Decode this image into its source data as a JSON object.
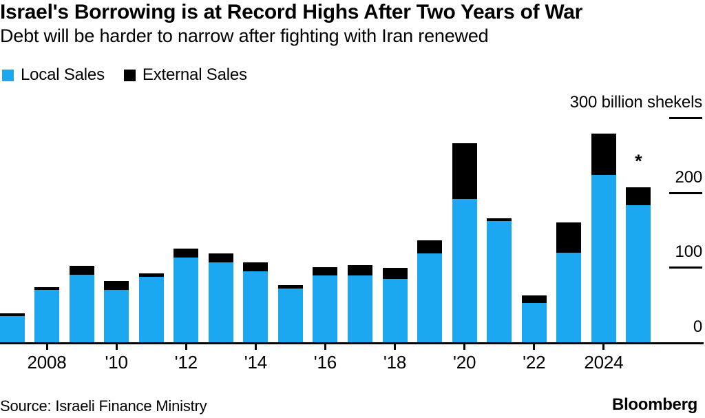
{
  "header": {
    "title": "Israel's Borrowing is at Record Highs After Two Years of War",
    "subtitle": "Debt will be harder to narrow after fighting with Iran renewed"
  },
  "legend": {
    "items": [
      {
        "label": "Local Sales",
        "color": "#1CA8F0"
      },
      {
        "label": "External Sales",
        "color": "#000000"
      }
    ]
  },
  "chart_data": {
    "type": "bar",
    "stacked": true,
    "title": "Israel's Borrowing is at Record Highs After Two Years of War",
    "subtitle": "Debt will be harder to narrow after fighting with Iran renewed",
    "unit": "billion shekels",
    "categories": [
      "2007",
      "2008",
      "2009",
      "2010",
      "2011",
      "2012",
      "2013",
      "2014",
      "2015",
      "2016",
      "2017",
      "2018",
      "2019",
      "2020",
      "2021",
      "2022",
      "2023",
      "2024",
      "2025"
    ],
    "series": [
      {
        "name": "Local Sales",
        "color": "#1CA8F0",
        "values": [
          35,
          70,
          90,
          70,
          87,
          113,
          107,
          95,
          72,
          89,
          89,
          85,
          119,
          191,
          162,
          52,
          120,
          224,
          183
        ]
      },
      {
        "name": "External Sales",
        "color": "#000000",
        "values": [
          4,
          4,
          12,
          12,
          5,
          12,
          12,
          12,
          4,
          11,
          14,
          14,
          17,
          75,
          4,
          11,
          40,
          55,
          24
        ]
      }
    ],
    "ylim": [
      0,
      300
    ],
    "yticks": [
      {
        "value": 0,
        "label": "0"
      },
      {
        "value": 100,
        "label": "100"
      },
      {
        "value": 200,
        "label": "200"
      },
      {
        "value": 300,
        "label": "300 billion shekels"
      }
    ],
    "xticks": [
      {
        "category": "2008",
        "label": "2008"
      },
      {
        "category": "2010",
        "label": "'10"
      },
      {
        "category": "2012",
        "label": "'12"
      },
      {
        "category": "2014",
        "label": "'14"
      },
      {
        "category": "2016",
        "label": "'16"
      },
      {
        "category": "2018",
        "label": "'18"
      },
      {
        "category": "2020",
        "label": "'20"
      },
      {
        "category": "2022",
        "label": "'22"
      },
      {
        "category": "2024",
        "label": "2024"
      }
    ],
    "annotation": {
      "text": "*",
      "category": "2025"
    },
    "grid": false,
    "legend_position": "top-left"
  },
  "footer": {
    "source": "Source: Israeli Finance Ministry",
    "brand": "Bloomberg"
  }
}
